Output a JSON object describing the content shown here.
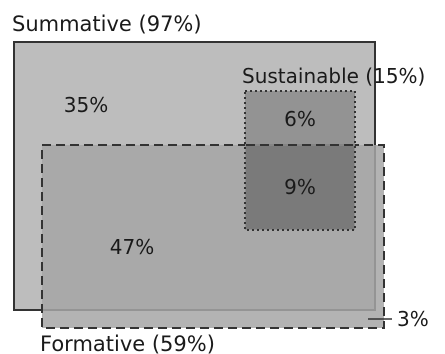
{
  "diagram": {
    "sets": [
      {
        "name": "summative",
        "label": "Summative (97%)",
        "color": "#bdbdbd"
      },
      {
        "name": "formative",
        "label": "Formative (59%)",
        "color": "#a6a6a6"
      },
      {
        "name": "sustainable",
        "label": "Sustainable (15%)",
        "color": "#8e8e8e"
      }
    ],
    "regions": [
      {
        "name": "summative-only",
        "value": "35%"
      },
      {
        "name": "summative-formative",
        "value": "47%"
      },
      {
        "name": "summative-sustainable",
        "value": "6%"
      },
      {
        "name": "all-three",
        "value": "9%"
      },
      {
        "name": "formative-only",
        "value": "3%"
      }
    ],
    "overlap_color": "#7a7a7a",
    "stroke_color": "#333333"
  }
}
